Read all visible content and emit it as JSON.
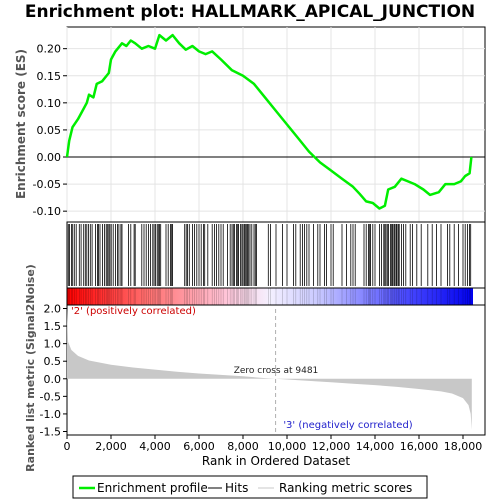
{
  "title": "Enrichment plot: HALLMARK_APICAL_JUNCTION",
  "colors": {
    "profile": "#00ee00",
    "hits": "#000000",
    "metric_fill": "#c8c8c8",
    "positive": "#ff0000",
    "negative": "#0000ff"
  },
  "labels": {
    "es_ylabel": "Enrichment score (ES)",
    "metric_ylabel": "Ranked list metric (Signal2Noise)",
    "xlabel": "Rank in Ordered Dataset",
    "positive_note": "'2' (positively correlated)",
    "negative_note": "'3' (negatively correlated)",
    "zero_cross": "Zero cross at 9481"
  },
  "legend": {
    "profile": "Enrichment profile",
    "hits": "Hits",
    "metric": "Ranking metric scores"
  },
  "chart_data": {
    "type": "line",
    "n_genes": 18400,
    "zero_cross": 9481,
    "xlim": [
      0,
      19000
    ],
    "x_ticks": [
      0,
      2000,
      4000,
      6000,
      8000,
      10000,
      12000,
      14000,
      16000,
      18000
    ],
    "x_tick_labels": [
      "0",
      "2,000",
      "4,000",
      "6,000",
      "8,000",
      "10,000",
      "12,000",
      "14,000",
      "16,000",
      "18,000"
    ],
    "es_ylim": [
      -0.12,
      0.24
    ],
    "es_ticks": [
      -0.1,
      -0.05,
      0.0,
      0.05,
      0.1,
      0.15,
      0.2
    ],
    "es_tick_labels": [
      "-0.10",
      "-0.05",
      "0.00",
      "0.05",
      "0.10",
      "0.15",
      "0.20"
    ],
    "metric_ylim": [
      -1.6,
      2.1
    ],
    "metric_ticks": [
      -1.5,
      -1.0,
      -0.5,
      0.0,
      0.5,
      1.0,
      1.5,
      2.0
    ],
    "metric_tick_labels": [
      "-1.5",
      "-1.0",
      "-0.5",
      "0.0",
      "0.5",
      "1.0",
      "1.5",
      "2.0"
    ],
    "es_profile": [
      [
        0,
        0.0
      ],
      [
        100,
        0.03
      ],
      [
        250,
        0.055
      ],
      [
        500,
        0.07
      ],
      [
        700,
        0.085
      ],
      [
        900,
        0.1
      ],
      [
        1000,
        0.115
      ],
      [
        1200,
        0.11
      ],
      [
        1350,
        0.135
      ],
      [
        1600,
        0.14
      ],
      [
        1900,
        0.155
      ],
      [
        2000,
        0.18
      ],
      [
        2200,
        0.195
      ],
      [
        2500,
        0.21
      ],
      [
        2700,
        0.205
      ],
      [
        2900,
        0.215
      ],
      [
        3100,
        0.21
      ],
      [
        3400,
        0.2
      ],
      [
        3700,
        0.205
      ],
      [
        4000,
        0.2
      ],
      [
        4200,
        0.225
      ],
      [
        4500,
        0.215
      ],
      [
        4800,
        0.225
      ],
      [
        5100,
        0.21
      ],
      [
        5400,
        0.198
      ],
      [
        5700,
        0.205
      ],
      [
        6000,
        0.195
      ],
      [
        6300,
        0.19
      ],
      [
        6600,
        0.195
      ],
      [
        7000,
        0.18
      ],
      [
        7500,
        0.16
      ],
      [
        8000,
        0.15
      ],
      [
        8500,
        0.135
      ],
      [
        9000,
        0.11
      ],
      [
        9500,
        0.085
      ],
      [
        10000,
        0.06
      ],
      [
        10500,
        0.035
      ],
      [
        11000,
        0.01
      ],
      [
        11500,
        -0.01
      ],
      [
        12000,
        -0.025
      ],
      [
        12500,
        -0.04
      ],
      [
        13000,
        -0.055
      ],
      [
        13300,
        -0.068
      ],
      [
        13600,
        -0.082
      ],
      [
        13900,
        -0.085
      ],
      [
        14200,
        -0.095
      ],
      [
        14450,
        -0.09
      ],
      [
        14600,
        -0.06
      ],
      [
        14900,
        -0.055
      ],
      [
        15200,
        -0.04
      ],
      [
        15500,
        -0.045
      ],
      [
        15800,
        -0.05
      ],
      [
        16200,
        -0.06
      ],
      [
        16500,
        -0.07
      ],
      [
        16900,
        -0.065
      ],
      [
        17200,
        -0.05
      ],
      [
        17600,
        -0.05
      ],
      [
        17900,
        -0.045
      ],
      [
        18100,
        -0.035
      ],
      [
        18300,
        -0.03
      ],
      [
        18380,
        0.0
      ]
    ],
    "metric_curve": [
      [
        0,
        2.0
      ],
      [
        50,
        1.05
      ],
      [
        200,
        0.82
      ],
      [
        500,
        0.65
      ],
      [
        1000,
        0.52
      ],
      [
        2000,
        0.4
      ],
      [
        3000,
        0.32
      ],
      [
        4000,
        0.26
      ],
      [
        5000,
        0.2
      ],
      [
        6000,
        0.15
      ],
      [
        7000,
        0.11
      ],
      [
        8000,
        0.07
      ],
      [
        9000,
        0.02
      ],
      [
        9481,
        0.0
      ],
      [
        10000,
        -0.02
      ],
      [
        11000,
        -0.06
      ],
      [
        12000,
        -0.1
      ],
      [
        13000,
        -0.14
      ],
      [
        14000,
        -0.18
      ],
      [
        15000,
        -0.23
      ],
      [
        16000,
        -0.29
      ],
      [
        17000,
        -0.36
      ],
      [
        17500,
        -0.42
      ],
      [
        18000,
        -0.55
      ],
      [
        18250,
        -0.75
      ],
      [
        18350,
        -1.0
      ],
      [
        18400,
        -1.45
      ]
    ],
    "hits": [
      60,
      120,
      200,
      260,
      330,
      420,
      560,
      640,
      760,
      830,
      900,
      980,
      1060,
      1140,
      1300,
      1380,
      1430,
      1500,
      1620,
      1700,
      1780,
      1830,
      1900,
      1950,
      2010,
      2100,
      2200,
      2300,
      2360,
      2450,
      2500,
      2800,
      2900,
      3050,
      3100,
      3400,
      3500,
      3600,
      3700,
      3800,
      3900,
      3960,
      4020,
      4100,
      4150,
      4200,
      4260,
      4500,
      4600,
      4700,
      4760,
      4800,
      5350,
      5420,
      5480,
      5560,
      5700,
      5800,
      5900,
      6000,
      6100,
      6200,
      6260,
      6400,
      6600,
      6700,
      6800,
      6900,
      7000,
      7100,
      7300,
      7420,
      7500,
      7560,
      7620,
      7700,
      7760,
      7800,
      7880,
      7950,
      8000,
      8060,
      8100,
      8150,
      8200,
      8260,
      8320,
      8400,
      8500,
      8560,
      8620,
      9150,
      9250,
      9500,
      9800,
      10000,
      10300,
      10400,
      10600,
      10700,
      10800,
      10900,
      11000,
      11200,
      11400,
      11500,
      11700,
      11800,
      12000,
      12100,
      12500,
      12700,
      12900,
      13000,
      13100,
      13500,
      13600,
      13700,
      13760,
      13800,
      13900,
      14000,
      14200,
      14300,
      14400,
      14450,
      14500,
      14560,
      14620,
      14700,
      14760,
      14800,
      14860,
      14900,
      14960,
      15000,
      15060,
      15100,
      15200,
      15300,
      15400,
      15600,
      15700,
      15900,
      16100,
      16400,
      16600,
      16800,
      17000,
      17300,
      17400,
      17600,
      17800,
      18000,
      18100,
      18200,
      18300,
      18350
    ]
  }
}
